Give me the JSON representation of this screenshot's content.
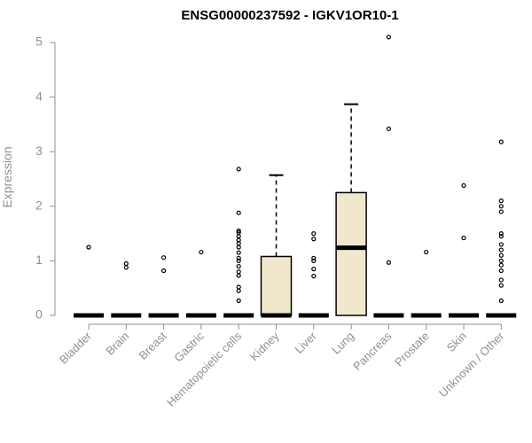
{
  "chart_data": {
    "type": "box",
    "title": "ENSG00000237592 - IGKV1OR10-1",
    "xlabel": "",
    "ylabel": "Expression",
    "ylim": [
      0,
      5
    ],
    "yticks": [
      0,
      1,
      2,
      3,
      4,
      5
    ],
    "box_fill": "#f0e7cc",
    "categories": [
      "Bladder",
      "Brain",
      "Breast",
      "Gastric",
      "Hematopoietic cells",
      "Kidney",
      "Liver",
      "Lung",
      "Pancreas",
      "Prostate",
      "Skin",
      "Unknown / Other"
    ],
    "boxes": [
      {
        "min": 0,
        "q1": 0,
        "median": 0,
        "q3": 0,
        "max": 0,
        "outliers": [
          1.25
        ]
      },
      {
        "min": 0,
        "q1": 0,
        "median": 0,
        "q3": 0,
        "max": 0,
        "outliers": [
          0.88,
          0.95
        ]
      },
      {
        "min": 0,
        "q1": 0,
        "median": 0,
        "q3": 0,
        "max": 0,
        "outliers": [
          0.82,
          1.06
        ]
      },
      {
        "min": 0,
        "q1": 0,
        "median": 0,
        "q3": 0,
        "max": 0,
        "outliers": [
          1.16
        ]
      },
      {
        "min": 0,
        "q1": 0,
        "median": 0,
        "q3": 0,
        "max": 0,
        "outliers": [
          0.27,
          0.45,
          0.52,
          0.73,
          0.8,
          0.9,
          1.0,
          1.05,
          1.15,
          1.25,
          1.32,
          1.38,
          1.45,
          1.52,
          1.55,
          1.88,
          2.68
        ]
      },
      {
        "min": 0,
        "q1": 0,
        "median": 0,
        "q3": 1.08,
        "max": 2.57,
        "outliers": []
      },
      {
        "min": 0,
        "q1": 0,
        "median": 0,
        "q3": 0,
        "max": 0,
        "outliers": [
          0.72,
          0.85,
          1.0,
          1.05,
          1.4,
          1.5
        ]
      },
      {
        "min": 0,
        "q1": 0,
        "median": 1.24,
        "q3": 2.25,
        "max": 3.87,
        "outliers": []
      },
      {
        "min": 0,
        "q1": 0,
        "median": 0,
        "q3": 0,
        "max": 0,
        "outliers": [
          0.97,
          3.42,
          5.1
        ]
      },
      {
        "min": 0,
        "q1": 0,
        "median": 0,
        "q3": 0,
        "max": 0,
        "outliers": [
          1.16
        ]
      },
      {
        "min": 0,
        "q1": 0,
        "median": 0,
        "q3": 0,
        "max": 0,
        "outliers": [
          1.42,
          2.38
        ]
      },
      {
        "min": 0,
        "q1": 0,
        "median": 0,
        "q3": 0,
        "max": 0,
        "outliers": [
          0.27,
          0.55,
          0.65,
          0.82,
          0.92,
          1.0,
          1.1,
          1.2,
          1.3,
          1.45,
          1.5,
          1.9,
          2.0,
          2.1,
          3.18
        ]
      }
    ]
  }
}
